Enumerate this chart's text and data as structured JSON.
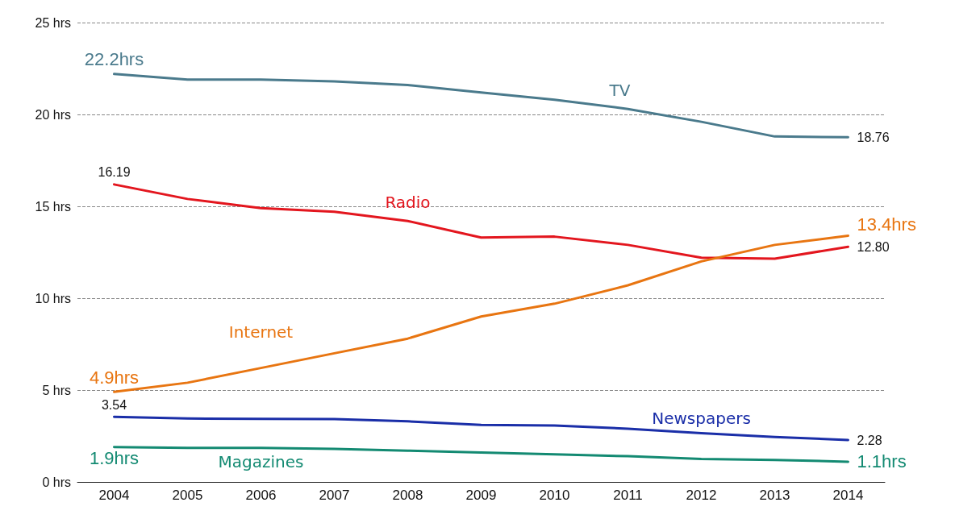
{
  "chart_data": {
    "type": "line",
    "categories": [
      "2004",
      "2005",
      "2006",
      "2007",
      "2008",
      "2009",
      "2010",
      "2011",
      "2012",
      "2013",
      "2014"
    ],
    "series": [
      {
        "name": "TV",
        "color": "#4a7a8c",
        "values": [
          22.2,
          21.9,
          21.9,
          21.8,
          21.6,
          21.2,
          20.8,
          20.3,
          19.6,
          18.8,
          18.76
        ],
        "value_labels": [
          "22.2hrs",
          null,
          null,
          null,
          null,
          null,
          null,
          null,
          null,
          null,
          "18.76"
        ]
      },
      {
        "name": "Radio",
        "color": "#e3161e",
        "values": [
          16.19,
          15.4,
          14.9,
          14.7,
          14.2,
          13.3,
          13.35,
          12.9,
          12.2,
          12.15,
          12.8
        ],
        "value_labels": [
          "16.19",
          null,
          null,
          null,
          null,
          null,
          null,
          null,
          null,
          null,
          "12.80"
        ]
      },
      {
        "name": "Internet",
        "color": "#e87511",
        "values": [
          4.9,
          5.4,
          6.2,
          7.0,
          7.8,
          9.0,
          9.7,
          10.7,
          12.0,
          12.9,
          13.4
        ],
        "value_labels": [
          "4.9hrs",
          null,
          null,
          null,
          null,
          null,
          null,
          null,
          null,
          null,
          "13.4hrs"
        ]
      },
      {
        "name": "Newspapers",
        "color": "#1a2ea8",
        "values": [
          3.54,
          3.45,
          3.43,
          3.42,
          3.3,
          3.1,
          3.07,
          2.9,
          2.65,
          2.45,
          2.28
        ],
        "value_labels": [
          "3.54",
          null,
          null,
          null,
          null,
          null,
          null,
          null,
          null,
          null,
          "2.28"
        ]
      },
      {
        "name": "Magazines",
        "color": "#138a72",
        "values": [
          1.9,
          1.85,
          1.85,
          1.8,
          1.7,
          1.6,
          1.5,
          1.4,
          1.25,
          1.2,
          1.1
        ],
        "value_labels": [
          "1.9hrs",
          null,
          null,
          null,
          null,
          null,
          null,
          null,
          null,
          null,
          "1.1hrs"
        ]
      }
    ],
    "ylim": [
      0,
      25
    ],
    "yticks": [
      {
        "value": 0,
        "label": "0 hrs"
      },
      {
        "value": 5,
        "label": "5 hrs"
      },
      {
        "value": 10,
        "label": "10 hrs"
      },
      {
        "value": 15,
        "label": "15 hrs"
      },
      {
        "value": 20,
        "label": "20 hrs"
      },
      {
        "value": 25,
        "label": "25 hrs"
      }
    ],
    "grid": "y",
    "line_style": "solid",
    "legend": false
  }
}
